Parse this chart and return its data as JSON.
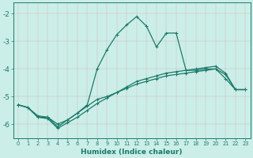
{
  "xlabel": "Humidex (Indice chaleur)",
  "bg_color": "#cceee8",
  "grid_color": "#b0d9d0",
  "line_color": "#1a7a6a",
  "xlim": [
    -0.5,
    23.5
  ],
  "ylim": [
    -6.5,
    -1.6
  ],
  "yticks": [
    -6,
    -5,
    -4,
    -3,
    -2
  ],
  "xticks": [
    0,
    1,
    2,
    3,
    4,
    5,
    6,
    7,
    8,
    9,
    10,
    11,
    12,
    13,
    14,
    15,
    16,
    17,
    18,
    19,
    20,
    21,
    22,
    23
  ],
  "series1_x": [
    0,
    1,
    2,
    3,
    4,
    5,
    6,
    7,
    8,
    9,
    10,
    11,
    12,
    13,
    14,
    15,
    16,
    17,
    18,
    19,
    20,
    21,
    22,
    23
  ],
  "series1_y": [
    -5.3,
    -5.4,
    -5.75,
    -5.75,
    -6.1,
    -5.85,
    -5.6,
    -5.35,
    -5.1,
    -5.0,
    -4.85,
    -4.7,
    -4.55,
    -4.45,
    -4.35,
    -4.25,
    -4.2,
    -4.15,
    -4.1,
    -4.05,
    -4.0,
    -4.2,
    -4.75,
    -4.75
  ],
  "series2_x": [
    0,
    1,
    2,
    3,
    4,
    5,
    6,
    7,
    8,
    9,
    10,
    11,
    12,
    13,
    14,
    15,
    16,
    17,
    18,
    19,
    20,
    21,
    22,
    23
  ],
  "series2_y": [
    -5.3,
    -5.4,
    -5.75,
    -5.8,
    -6.15,
    -5.95,
    -5.75,
    -5.5,
    -5.25,
    -5.05,
    -4.85,
    -4.65,
    -4.45,
    -4.35,
    -4.25,
    -4.15,
    -4.1,
    -4.05,
    -4.0,
    -3.95,
    -3.9,
    -4.15,
    -4.75,
    -4.75
  ],
  "series3_x": [
    0,
    1,
    2,
    3,
    4,
    5,
    6,
    7,
    8,
    9,
    10,
    11,
    12,
    13,
    14,
    15,
    16,
    17,
    18,
    19,
    20,
    21,
    22,
    23
  ],
  "series3_y": [
    -5.3,
    -5.4,
    -5.7,
    -5.75,
    -6.0,
    -5.85,
    -5.6,
    -5.3,
    -4.0,
    -3.3,
    -2.75,
    -2.4,
    -2.1,
    -2.45,
    -3.2,
    -2.7,
    -2.7,
    -4.05,
    -4.05,
    -4.0,
    -4.0,
    -4.35,
    -4.75,
    -4.75
  ],
  "marker": "+",
  "lw": 0.9,
  "ms": 3
}
